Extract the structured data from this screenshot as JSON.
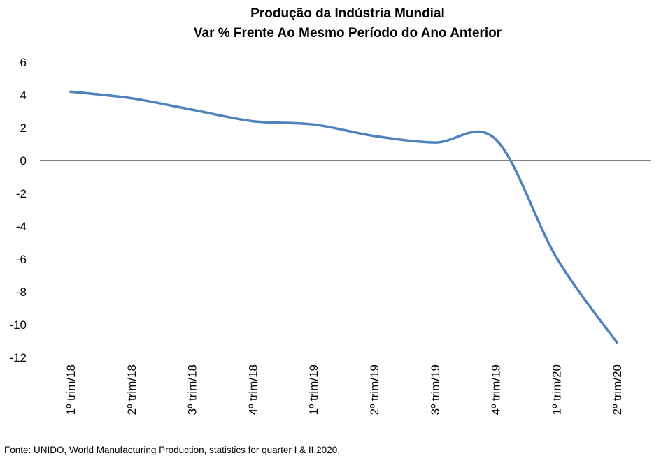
{
  "chart_data": {
    "type": "line",
    "title": "Produção da Indústria Mundial",
    "subtitle": "Var % Frente Ao Mesmo Período do Ano Anterior",
    "categories": [
      "1º trim/18",
      "2º trim/18",
      "3º trim/18",
      "4º trim/18",
      "1º trim/19",
      "2º trim/19",
      "3º trim/19",
      "4º trim/19",
      "1º trim/20",
      "2º trim/20"
    ],
    "values": [
      4.2,
      3.8,
      3.1,
      2.4,
      2.2,
      1.5,
      1.1,
      1.3,
      -5.9,
      -11.1
    ],
    "ylim": [
      -12,
      6
    ],
    "yticks": [
      6,
      4,
      2,
      0,
      -2,
      -4,
      -6,
      -8,
      -10,
      -12
    ],
    "grid": false,
    "legend": "none",
    "line_color": "#4f81bd"
  },
  "source_note": "Fonte: UNIDO, World Manufacturing Production,  statistics for quarter I & II,2020."
}
